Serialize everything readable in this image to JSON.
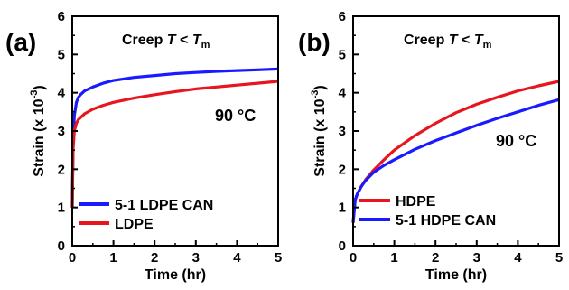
{
  "chart_data": [
    {
      "panel_label": "(a)",
      "type": "line",
      "title": "Creep T < T",
      "title_subscript": "m",
      "annotation": "90 °C",
      "xlabel": "Time (hr)",
      "ylabel_main": "Strain (x 10",
      "ylabel_sup": "-3",
      "ylabel_end": ")",
      "xlim": [
        0,
        5
      ],
      "ylim": [
        0,
        6
      ],
      "xticks": [
        "0",
        "1",
        "2",
        "3",
        "4",
        "5"
      ],
      "yticks": [
        "0",
        "1",
        "2",
        "3",
        "4",
        "5",
        "6"
      ],
      "legend_position": "bottom-left",
      "series": [
        {
          "name": "5-1 LDPE CAN",
          "color": "#1a1aff",
          "x": [
            0.0,
            0.02,
            0.05,
            0.1,
            0.15,
            0.2,
            0.3,
            0.5,
            0.75,
            1.0,
            1.5,
            2.0,
            2.5,
            3.0,
            3.5,
            4.0,
            4.5,
            5.0
          ],
          "y": [
            1.0,
            2.6,
            3.4,
            3.75,
            3.88,
            3.95,
            4.05,
            4.15,
            4.25,
            4.32,
            4.4,
            4.45,
            4.5,
            4.53,
            4.56,
            4.58,
            4.6,
            4.62
          ]
        },
        {
          "name": "LDPE",
          "color": "#e8141e",
          "x": [
            0.0,
            0.02,
            0.05,
            0.1,
            0.15,
            0.2,
            0.3,
            0.5,
            0.75,
            1.0,
            1.5,
            2.0,
            2.5,
            3.0,
            3.5,
            4.0,
            4.5,
            5.0
          ],
          "y": [
            1.0,
            2.5,
            3.0,
            3.2,
            3.3,
            3.35,
            3.45,
            3.57,
            3.67,
            3.75,
            3.86,
            3.95,
            4.03,
            4.1,
            4.15,
            4.2,
            4.25,
            4.3
          ]
        }
      ]
    },
    {
      "panel_label": "(b)",
      "type": "line",
      "title": "Creep T < T",
      "title_subscript": "m",
      "annotation": "90 °C",
      "xlabel": "Time (hr)",
      "ylabel_main": "Strain (x 10",
      "ylabel_sup": "-3",
      "ylabel_end": ")",
      "xlim": [
        0,
        5
      ],
      "ylim": [
        0,
        6
      ],
      "xticks": [
        "0",
        "1",
        "2",
        "3",
        "4",
        "5"
      ],
      "yticks": [
        "0",
        "1",
        "2",
        "3",
        "4",
        "5",
        "6"
      ],
      "legend_position": "bottom-left",
      "series": [
        {
          "name": "HDPE",
          "color": "#e8141e",
          "x": [
            0.0,
            0.05,
            0.1,
            0.2,
            0.3,
            0.5,
            0.75,
            1.0,
            1.5,
            2.0,
            2.5,
            3.0,
            3.5,
            4.0,
            4.5,
            5.0
          ],
          "y": [
            0.6,
            1.2,
            1.35,
            1.55,
            1.72,
            1.98,
            2.25,
            2.5,
            2.88,
            3.2,
            3.48,
            3.7,
            3.88,
            4.05,
            4.18,
            4.3
          ]
        },
        {
          "name": "5-1 HDPE CAN",
          "color": "#1a1aff",
          "x": [
            0.0,
            0.05,
            0.1,
            0.2,
            0.3,
            0.5,
            0.75,
            1.0,
            1.5,
            2.0,
            2.5,
            3.0,
            3.5,
            4.0,
            4.5,
            5.0
          ],
          "y": [
            0.6,
            1.2,
            1.35,
            1.55,
            1.7,
            1.92,
            2.1,
            2.25,
            2.52,
            2.75,
            2.95,
            3.15,
            3.33,
            3.5,
            3.67,
            3.82
          ]
        }
      ]
    }
  ]
}
